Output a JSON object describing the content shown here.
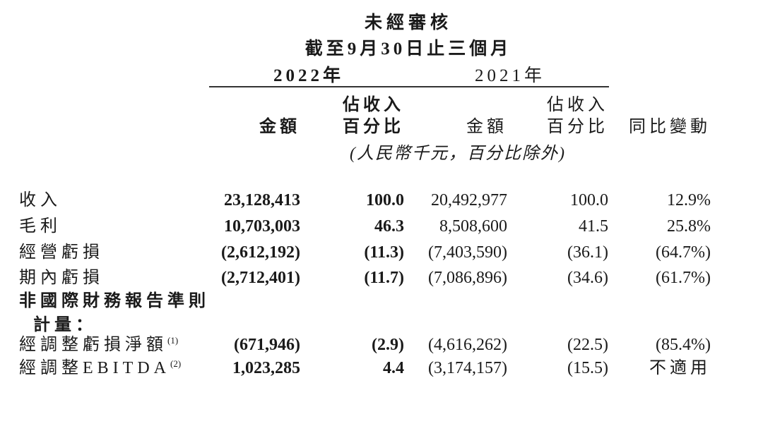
{
  "page": {
    "background_color": "#ffffff",
    "text_color": "#1a1a1a",
    "rule_color": "#333333"
  },
  "header": {
    "unaudited_label": "未經審核",
    "period_label": "截至9月30日止三個月",
    "year_2022": "2022年",
    "year_2021": "2021年",
    "units_note": "(人民幣千元，百分比除外)"
  },
  "columns": {
    "amount": "金額",
    "pct_line1": "佔收入",
    "pct_line2": "百分比",
    "yoy": "同比變動"
  },
  "rows": [
    {
      "label": "收入",
      "sup": "",
      "bold_label": false,
      "indent": false,
      "amount_2022": "23,128,413",
      "pct_2022": "100.0",
      "amount_2021": "20,492,977",
      "pct_2021": "100.0",
      "yoy": "12.9%"
    },
    {
      "label": "毛利",
      "sup": "",
      "bold_label": false,
      "indent": false,
      "amount_2022": "10,703,003",
      "pct_2022": "46.3",
      "amount_2021": "8,508,600",
      "pct_2021": "41.5",
      "yoy": "25.8%"
    },
    {
      "label": "經營虧損",
      "sup": "",
      "bold_label": false,
      "indent": false,
      "amount_2022": "(2,612,192)",
      "pct_2022": "(11.3)",
      "amount_2021": "(7,403,590)",
      "pct_2021": "(36.1)",
      "yoy": "(64.7%)"
    },
    {
      "label": "期內虧損",
      "sup": "",
      "bold_label": false,
      "indent": false,
      "amount_2022": "(2,712,401)",
      "pct_2022": "(11.7)",
      "amount_2021": "(7,086,896)",
      "pct_2021": "(34.6)",
      "yoy": "(61.7%)"
    },
    {
      "label": "非國際財務報告準則",
      "sup": "",
      "bold_label": true,
      "indent": false,
      "amount_2022": "",
      "pct_2022": "",
      "amount_2021": "",
      "pct_2021": "",
      "yoy": ""
    },
    {
      "label": "計量：",
      "sup": "",
      "bold_label": true,
      "indent": true,
      "amount_2022": "",
      "pct_2022": "",
      "amount_2021": "",
      "pct_2021": "",
      "yoy": ""
    },
    {
      "label": "經調整虧損淨額",
      "sup": "(1)",
      "bold_label": false,
      "indent": false,
      "amount_2022": "(671,946)",
      "pct_2022": "(2.9)",
      "amount_2021": "(4,616,262)",
      "pct_2021": "(22.5)",
      "yoy": "(85.4%)"
    },
    {
      "label": "經調整EBITDA",
      "sup": "(2)",
      "bold_label": false,
      "indent": false,
      "amount_2022": "1,023,285",
      "pct_2022": "4.4",
      "amount_2021": "(3,174,157)",
      "pct_2021": "(15.5)",
      "yoy": "不適用"
    }
  ]
}
